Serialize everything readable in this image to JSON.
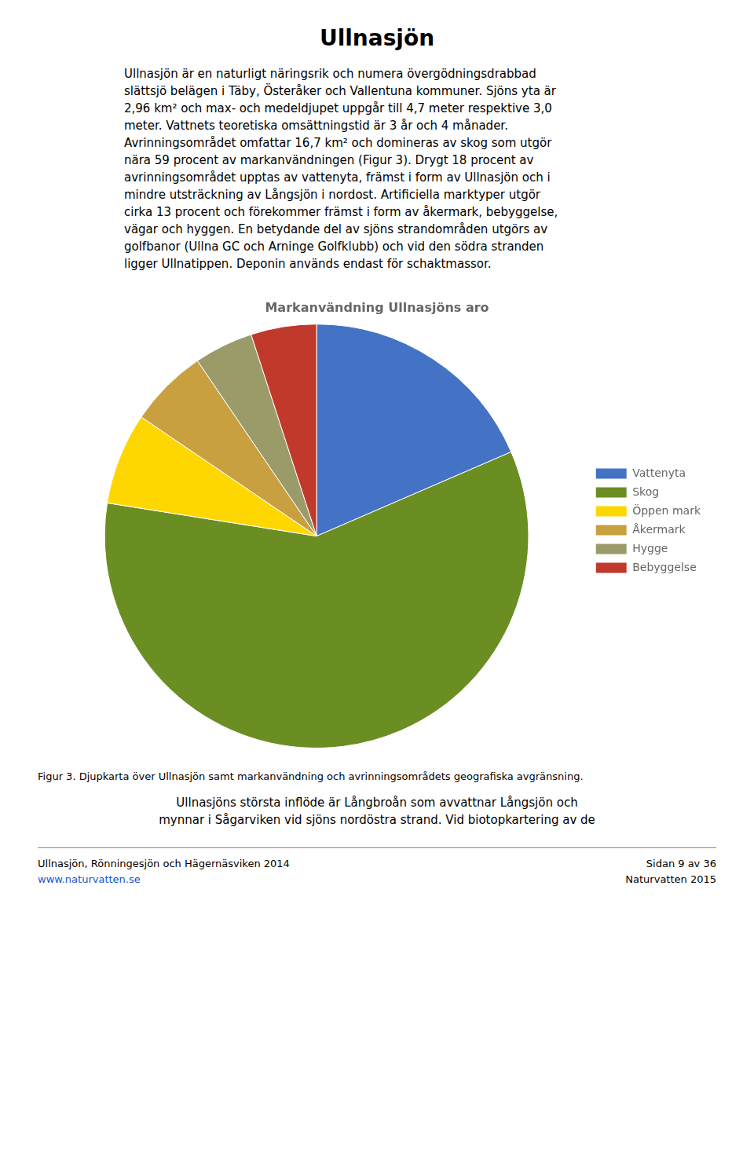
{
  "chart_data": {
    "type": "pie",
    "title": "Markanvändning Ullnasjöns aro",
    "categories": [
      "Vattenyta",
      "Skog",
      "Öppen mark",
      "Åkermark",
      "Hygge",
      "Bebyggelse"
    ],
    "values": [
      18.5,
      59.0,
      7.0,
      6.0,
      4.5,
      5.0
    ],
    "colors": [
      "#4472C4",
      "#6B8E23",
      "#FFD700",
      "#C8A040",
      "#9B9B6A",
      "#C0392B"
    ],
    "legend": "right",
    "annotations": [
      "Ullnasjön",
      "Ullnasjön är en naturligt näringsrik och numera övergödningsdrabbad",
      "slättsjö belägen i Täby, Österåker och Vallentuna kommuner. Sjöns yta är",
      "2,96 km² och max- och medeldjupet uppgår till 4,7 meter respektive 3,0",
      "meter. Vattnets teoretiska omsättningstid är 3 år och 4 månader.",
      "Avrinningsområdet omfattar 16,7 km² och domineras av skog som utgör",
      "nära 59 procent av markanvändningen (Figur 3). Drygt 18 procent av",
      "avrinningsområdet upptas av vattenyta, främst i form av Ullnasjön och i",
      "mindre utsträckning av Långsjön i nordost. Artificiella marktyper utgör",
      "cirka 13 procent och förekommer främst i form av åkermark, bebyggelse,",
      "vägar och hyggen. En betydande del av sjöns strandområden utgörs av",
      "golfbanor (Ullna GC och Arninge Golfklubb) och vid den södra stranden",
      "ligger Ullnatippen. Deponin används endast för schaktmassor.",
      "Figur 3. Djupkarta över Ullnasjön samt markanvändning och avrinningsområdets geografiska avgränsning.",
      "Ullnasjöns största inflöde är Långbroån som avvattnar Långsjön och",
      "mynnar i Sågarviken vid sjöns nordöstra strand. Vid biotopkartering av de",
      "Ullnasjön, Rönningesjön och Hägernäsviken 2014",
      "www.naturvatten.se",
      "Sidan 9 av 36",
      "Naturvatten 2015"
    ]
  }
}
